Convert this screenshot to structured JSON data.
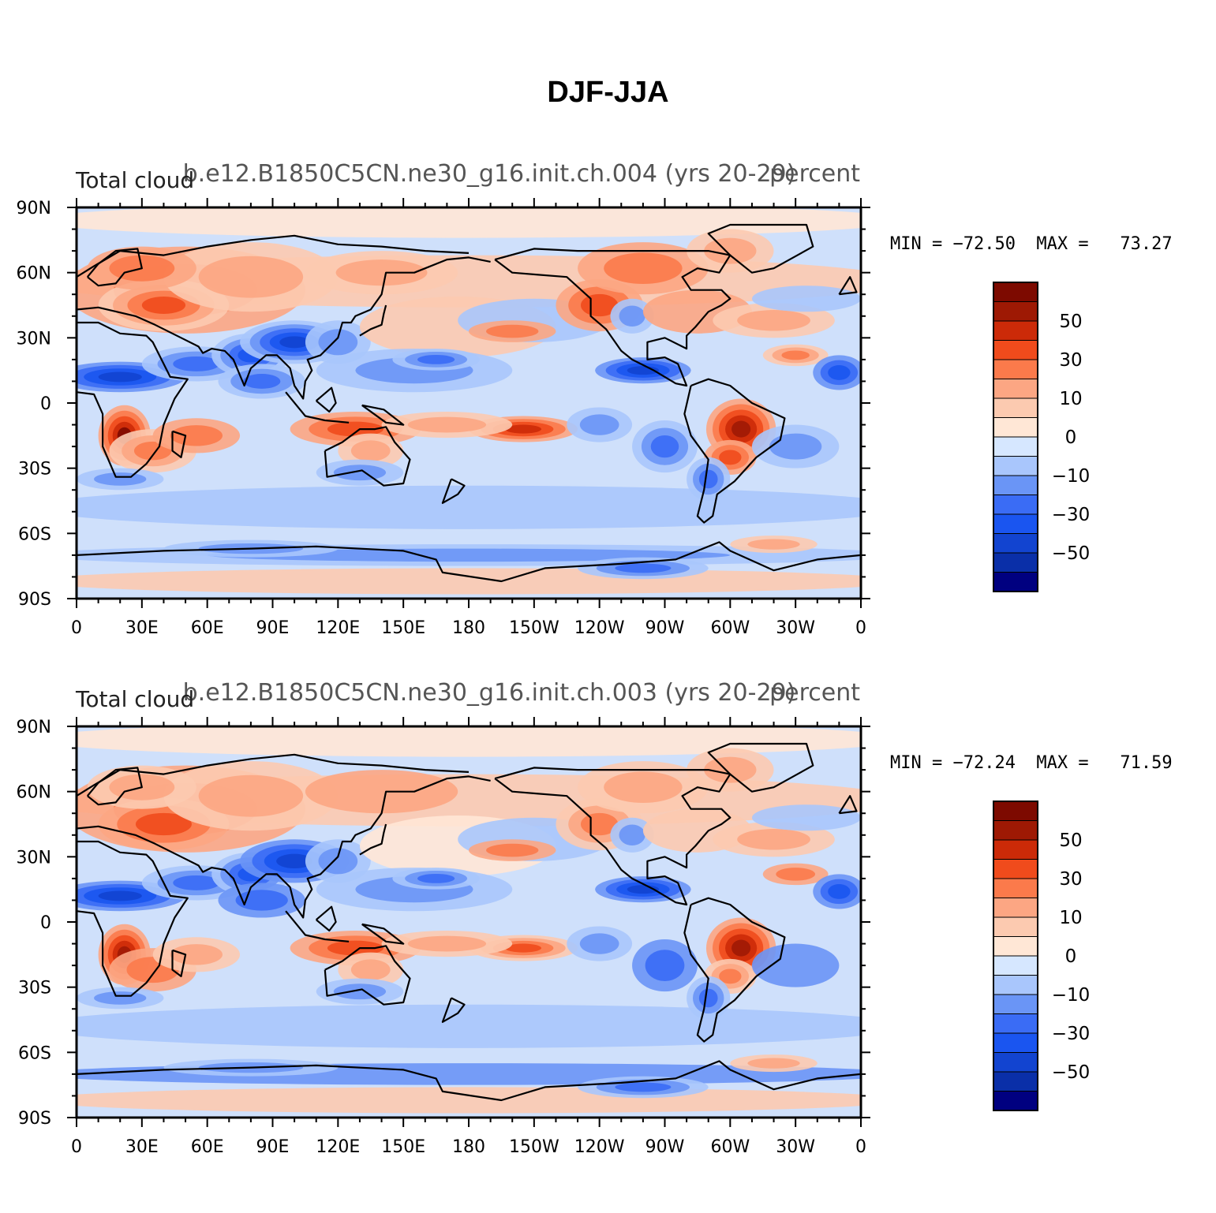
{
  "title": "DJF-JJA",
  "chart_data": [
    {
      "type": "heatmap",
      "title": "b.e12.B1850C5CN.ne30_g16.init.ch.004 (yrs 20-29)",
      "left_label": "Total cloud",
      "right_label": "percent",
      "min_max_label": "MIN = −72.50  MAX =   73.27",
      "min": -72.5,
      "max": 73.27,
      "x_tick_labels": [
        "0",
        "30E",
        "60E",
        "90E",
        "120E",
        "150E",
        "180",
        "150W",
        "120W",
        "90W",
        "60W",
        "30W",
        "0"
      ],
      "y_tick_labels": [
        "90N",
        "60N",
        "30N",
        "0",
        "30S",
        "60S",
        "90S"
      ],
      "xlim": [
        0,
        360
      ],
      "ylim": [
        -90,
        90
      ]
    },
    {
      "type": "heatmap",
      "title": "b.e12.B1850C5CN.ne30_g16.init.ch.003 (yrs 20-29)",
      "left_label": "Total cloud",
      "right_label": "percent",
      "min_max_label": "MIN = −72.24  MAX =   71.59",
      "min": -72.24,
      "max": 71.59,
      "x_tick_labels": [
        "0",
        "30E",
        "60E",
        "90E",
        "120E",
        "150E",
        "180",
        "150W",
        "120W",
        "90W",
        "60W",
        "30W",
        "0"
      ],
      "y_tick_labels": [
        "90N",
        "60N",
        "30N",
        "0",
        "30S",
        "60S",
        "90S"
      ],
      "xlim": [
        0,
        360
      ],
      "ylim": [
        -90,
        90
      ]
    }
  ],
  "colorbar": {
    "levels": [
      -70,
      -60,
      -50,
      -40,
      -30,
      -20,
      -10,
      -5,
      0,
      5,
      10,
      20,
      30,
      40,
      50,
      60,
      70
    ],
    "colors": [
      "#000080",
      "#0a2fa8",
      "#1244d0",
      "#1a55f0",
      "#3a6cf5",
      "#6a95f6",
      "#a9c6fc",
      "#d6e7ff",
      "#ffe7d6",
      "#fccab0",
      "#fca683",
      "#fb7a4b",
      "#f04b1c",
      "#cc2a08",
      "#9e1904",
      "#7d0a00"
    ],
    "tick_labels": [
      "50",
      "30",
      "10",
      "0",
      "−10",
      "−30",
      "−50"
    ]
  },
  "map": {
    "background_color": "#cfe0fb",
    "coast_color": "#000000"
  }
}
